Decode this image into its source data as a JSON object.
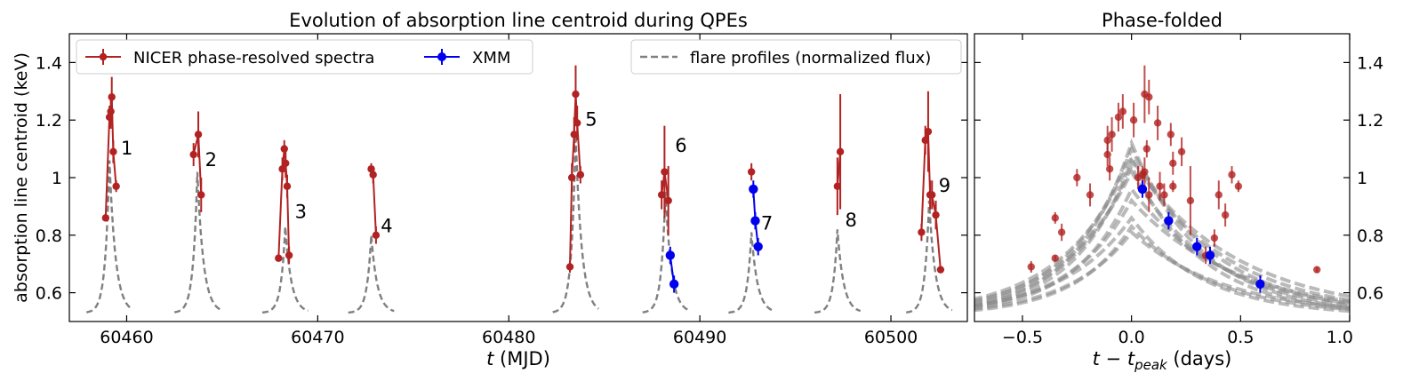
{
  "figure": {
    "ylabel": "absorption line centroid (keV)"
  },
  "chart_data": [
    {
      "type": "line",
      "title": "Evolution of absorption line centroid during QPEs",
      "xlabel": "t (MJD)",
      "xlabel_italic": "t",
      "xlabel_rest": " (MJD)",
      "ylabel": "absorption line centroid (keV)",
      "xlim": [
        60457,
        60504
      ],
      "ylim": [
        0.5,
        1.5
      ],
      "xticks": [
        60460,
        60470,
        60480,
        60490,
        60500
      ],
      "yticks": [
        0.6,
        0.8,
        1.0,
        1.2,
        1.4
      ],
      "ytick_labels": [
        "0.6",
        "0.8",
        "1",
        "1.2",
        "1.4"
      ],
      "legend": {
        "position": "top",
        "entries": [
          {
            "label": "NICER phase-resolved spectra",
            "color": "#b22222",
            "style": "line-marker-errorbar"
          },
          {
            "label": "XMM",
            "color": "#0000ee",
            "style": "line-marker-errorbar"
          },
          {
            "label": "flare profiles (normalized flux)",
            "color": "#808080",
            "style": "dashed"
          }
        ]
      },
      "flare_profiles": [
        {
          "t0": 59.1,
          "peak": 1.06
        },
        {
          "t0": 63.7,
          "peak": 1.02
        },
        {
          "t0": 68.3,
          "peak": 0.83
        },
        {
          "t0": 72.8,
          "peak": 0.8
        },
        {
          "t0": 83.5,
          "peak": 1.15
        },
        {
          "t0": 88.2,
          "peak": 0.95
        },
        {
          "t0": 92.7,
          "peak": 0.81
        },
        {
          "t0": 97.2,
          "peak": 0.82
        },
        {
          "t0": 102.0,
          "peak": 0.92
        }
      ],
      "flare_base": 0.53,
      "flare_labels": [
        {
          "text": "1",
          "x": 60459.7,
          "y": 1.08
        },
        {
          "text": "2",
          "x": 60464.1,
          "y": 1.04
        },
        {
          "text": "3",
          "x": 60468.8,
          "y": 0.86
        },
        {
          "text": "4",
          "x": 60473.3,
          "y": 0.81
        },
        {
          "text": "5",
          "x": 60484.0,
          "y": 1.18
        },
        {
          "text": "6",
          "x": 60488.7,
          "y": 1.09
        },
        {
          "text": "7",
          "x": 60493.2,
          "y": 0.82
        },
        {
          "text": "8",
          "x": 60497.6,
          "y": 0.83
        },
        {
          "text": "9",
          "x": 60502.5,
          "y": 0.95
        }
      ],
      "nicer_series": [
        {
          "t": [
            60458.9,
            60459.1,
            60459.17,
            60459.22,
            60459.3,
            60459.45
          ],
          "y": [
            0.86,
            1.21,
            1.23,
            1.28,
            1.09,
            0.97
          ],
          "err": [
            0.01,
            0.04,
            0.06,
            0.07,
            0.04,
            0.02
          ]
        },
        {
          "t": [
            60463.5,
            60463.75,
            60463.9
          ],
          "y": [
            1.08,
            1.15,
            0.94
          ],
          "err": [
            0.04,
            0.08,
            0.06
          ]
        },
        {
          "t": [
            60467.95,
            60468.15,
            60468.25,
            60468.32,
            60468.4,
            60468.5
          ],
          "y": [
            0.72,
            1.03,
            1.1,
            1.05,
            0.97,
            0.73
          ],
          "err": [
            0.01,
            0.04,
            0.03,
            0.05,
            0.04,
            0.03
          ]
        },
        {
          "t": [
            60472.8,
            60472.9,
            60473.05
          ],
          "y": [
            1.03,
            1.01,
            0.8
          ],
          "err": [
            0.02,
            0.03,
            0.03
          ]
        },
        {
          "t": [
            60483.2,
            60483.3,
            60483.42,
            60483.5,
            60483.58,
            60483.75
          ],
          "y": [
            0.69,
            1.0,
            1.15,
            1.29,
            1.19,
            1.01
          ],
          "err": [
            0.02,
            0.05,
            0.06,
            0.1,
            0.06,
            0.03
          ]
        },
        {
          "t": [
            60488.0,
            60488.15,
            60488.35
          ],
          "y": [
            0.94,
            1.02,
            0.92
          ],
          "err": [
            0.05,
            0.16,
            0.12
          ]
        },
        {
          "t": [
            60492.7
          ],
          "y": [
            1.02
          ],
          "err": [
            0.03
          ]
        },
        {
          "t": [
            60497.2,
            60497.35
          ],
          "y": [
            0.97,
            1.09
          ],
          "err": [
            0.1,
            0.2
          ]
        },
        {
          "t": [
            60501.6,
            60501.8,
            60501.95,
            60502.05,
            60502.15,
            60502.35,
            60502.6
          ],
          "y": [
            0.81,
            1.13,
            1.16,
            0.94,
            0.94,
            0.87,
            0.68
          ],
          "err": [
            0.03,
            0.05,
            0.14,
            0.05,
            0.05,
            0.05,
            0.01
          ]
        }
      ],
      "xmm_series": [
        {
          "t": [
            60488.45,
            60488.65
          ],
          "y": [
            0.73,
            0.63
          ],
          "err": [
            0.03,
            0.03
          ]
        },
        {
          "t": [
            60492.8,
            60492.9,
            60493.05
          ],
          "y": [
            0.96,
            0.85,
            0.76
          ],
          "err": [
            0.03,
            0.03,
            0.03
          ]
        }
      ]
    },
    {
      "type": "scatter",
      "title": "Phase-folded",
      "xlabel": "t − t_peak (days)",
      "xlabel_main": "t − t",
      "xlabel_sub": "peak",
      "xlabel_rest": " (days)",
      "xlim": [
        -0.72,
        1.0
      ],
      "ylim": [
        0.5,
        1.5
      ],
      "xticks": [
        -0.5,
        0.0,
        0.5,
        1.0
      ],
      "xtick_labels": [
        "−0.5",
        "0.0",
        "0.5",
        "1.0"
      ],
      "yticks": [
        0.6,
        0.8,
        1.0,
        1.2,
        1.4
      ],
      "ytick_labels": [
        "0.6",
        "0.8",
        "1",
        "1.2",
        "1.4"
      ],
      "profile_peaks": [
        1.12,
        1.1,
        1.07,
        1.06,
        1.04,
        1.02,
        0.96,
        0.92,
        0.86,
        0.83,
        0.81
      ],
      "profile_base": 0.52,
      "nicer_points": [
        {
          "x": -0.46,
          "y": 0.69,
          "err": 0.02
        },
        {
          "x": -0.35,
          "y": 0.86,
          "err": 0.02
        },
        {
          "x": -0.35,
          "y": 0.72,
          "err": 0.01
        },
        {
          "x": -0.32,
          "y": 0.81,
          "err": 0.03
        },
        {
          "x": -0.25,
          "y": 1.0,
          "err": 0.03
        },
        {
          "x": -0.19,
          "y": 0.94,
          "err": 0.04
        },
        {
          "x": -0.11,
          "y": 1.13,
          "err": 0.05
        },
        {
          "x": -0.11,
          "y": 1.08,
          "err": 0.04
        },
        {
          "x": -0.1,
          "y": 1.03,
          "err": 0.04
        },
        {
          "x": -0.09,
          "y": 1.15,
          "err": 0.06
        },
        {
          "x": -0.06,
          "y": 1.21,
          "err": 0.05
        },
        {
          "x": -0.04,
          "y": 1.23,
          "err": 0.06
        },
        {
          "x": 0.01,
          "y": 1.2,
          "err": 0.06
        },
        {
          "x": 0.03,
          "y": 1.0,
          "err": 0.04
        },
        {
          "x": 0.05,
          "y": 1.01,
          "err": 0.03
        },
        {
          "x": 0.06,
          "y": 1.29,
          "err": 0.1
        },
        {
          "x": 0.06,
          "y": 1.02,
          "err": 0.05
        },
        {
          "x": 0.07,
          "y": 1.1,
          "err": 0.03
        },
        {
          "x": 0.08,
          "y": 1.28,
          "err": 0.06
        },
        {
          "x": 0.08,
          "y": 0.94,
          "err": 0.06
        },
        {
          "x": 0.12,
          "y": 1.19,
          "err": 0.06
        },
        {
          "x": 0.13,
          "y": 0.97,
          "err": 0.05
        },
        {
          "x": 0.15,
          "y": 0.94,
          "err": 0.04
        },
        {
          "x": 0.18,
          "y": 1.15,
          "err": 0.04
        },
        {
          "x": 0.19,
          "y": 1.05,
          "err": 0.04
        },
        {
          "x": 0.19,
          "y": 0.97,
          "err": 0.02
        },
        {
          "x": 0.23,
          "y": 1.09,
          "err": 0.05
        },
        {
          "x": 0.27,
          "y": 0.92,
          "err": 0.12
        },
        {
          "x": 0.34,
          "y": 0.73,
          "err": 0.03
        },
        {
          "x": 0.38,
          "y": 0.79,
          "err": 0.03
        },
        {
          "x": 0.4,
          "y": 0.94,
          "err": 0.05
        },
        {
          "x": 0.43,
          "y": 0.87,
          "err": 0.04
        },
        {
          "x": 0.46,
          "y": 1.01,
          "err": 0.03
        },
        {
          "x": 0.49,
          "y": 0.97,
          "err": 0.02
        },
        {
          "x": 0.85,
          "y": 0.68,
          "err": 0.01
        }
      ],
      "xmm_points": [
        {
          "x": 0.05,
          "y": 0.96,
          "err": 0.03
        },
        {
          "x": 0.17,
          "y": 0.85,
          "err": 0.03
        },
        {
          "x": 0.3,
          "y": 0.76,
          "err": 0.03
        },
        {
          "x": 0.36,
          "y": 0.73,
          "err": 0.03
        },
        {
          "x": 0.59,
          "y": 0.63,
          "err": 0.03
        }
      ]
    }
  ]
}
